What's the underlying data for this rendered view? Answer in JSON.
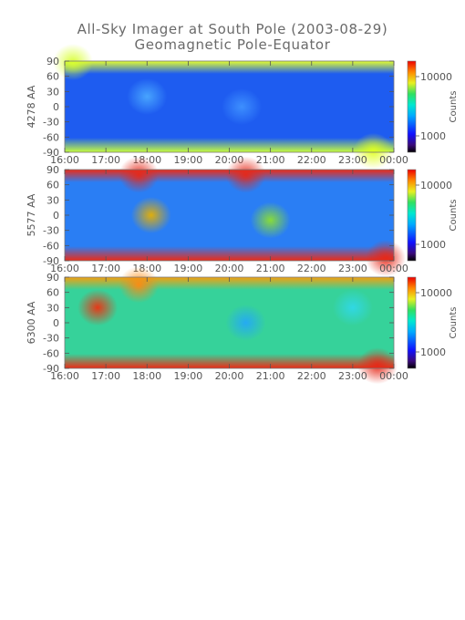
{
  "title": "All-Sky Imager at South Pole (2003-08-29)",
  "subtitle": "Geomagnetic Pole-Equator",
  "chart_data": [
    {
      "type": "heatmap",
      "ylabel": "4278 AA",
      "xticks": [
        "16:00",
        "17:00",
        "18:00",
        "19:00",
        "20:00",
        "21:00",
        "22:00",
        "23:00",
        "00:00"
      ],
      "yticks": [
        90,
        60,
        30,
        0,
        -30,
        -60,
        -90
      ],
      "ylim": [
        -90,
        90
      ],
      "colorbar": {
        "label": "Counts",
        "ticks": [
          "10000",
          "1000"
        ],
        "scale": "log"
      },
      "base_color": "#1e5cf0",
      "features": [
        {
          "x": 16.2,
          "y": 88,
          "color": "#d8ff30"
        },
        {
          "x": 18.0,
          "y": 20,
          "color": "#4aa8ff"
        },
        {
          "x": 20.3,
          "y": 0,
          "color": "#3f92ff"
        },
        {
          "x": 23.5,
          "y": -88,
          "color": "#e0ff20"
        }
      ]
    },
    {
      "type": "heatmap",
      "ylabel": "5577 AA",
      "xticks": [
        "16:00",
        "17:00",
        "18:00",
        "19:00",
        "20:00",
        "21:00",
        "22:00",
        "23:00",
        "00:00"
      ],
      "yticks": [
        90,
        60,
        30,
        0,
        -30,
        -60,
        -90
      ],
      "ylim": [
        -90,
        90
      ],
      "colorbar": {
        "label": "Counts",
        "ticks": [
          "10000",
          "1000"
        ],
        "scale": "log"
      },
      "base_color": "#2a7ef4",
      "features": [
        {
          "x": 17.8,
          "y": 80,
          "color": "#e62818"
        },
        {
          "x": 18.1,
          "y": 0,
          "color": "#e8b000"
        },
        {
          "x": 20.4,
          "y": 80,
          "color": "#e62818"
        },
        {
          "x": 21.0,
          "y": -10,
          "color": "#8ce030"
        },
        {
          "x": 23.8,
          "y": -85,
          "color": "#e62818"
        }
      ]
    },
    {
      "type": "heatmap",
      "ylabel": "6300 AA",
      "xticks": [
        "16:00",
        "17:00",
        "18:00",
        "19:00",
        "20:00",
        "21:00",
        "22:00",
        "23:00",
        "00:00"
      ],
      "yticks": [
        90,
        60,
        30,
        0,
        -30,
        -60,
        -90
      ],
      "ylim": [
        -90,
        90
      ],
      "colorbar": {
        "label": "Counts",
        "ticks": [
          "10000",
          "1000"
        ],
        "scale": "log"
      },
      "base_color": "#36d29a",
      "features": [
        {
          "x": 16.8,
          "y": 30,
          "color": "#f03010"
        },
        {
          "x": 17.8,
          "y": 75,
          "color": "#ff8a10"
        },
        {
          "x": 20.4,
          "y": 0,
          "color": "#24a8f8"
        },
        {
          "x": 23.0,
          "y": 30,
          "color": "#30d8e8"
        },
        {
          "x": 23.6,
          "y": -85,
          "color": "#e62818"
        }
      ]
    }
  ]
}
